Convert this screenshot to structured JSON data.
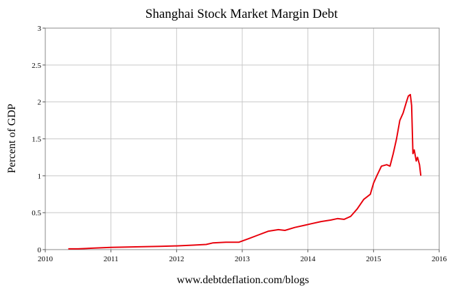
{
  "chart_data": {
    "type": "line",
    "title": "Shanghai Stock Market Margin Debt",
    "ylabel": "Percent of GDP",
    "xlabel": "",
    "footer": "www.debtdeflation.com/blogs",
    "xlim": [
      2010,
      2016
    ],
    "ylim": [
      0,
      3
    ],
    "xticks": [
      2010,
      2011,
      2012,
      2013,
      2014,
      2015,
      2016
    ],
    "xtick_labels": [
      "2010",
      "2011",
      "2012",
      "2013",
      "2014",
      "2015",
      "2016"
    ],
    "yticks": [
      0,
      0.5,
      1,
      1.5,
      2,
      2.5,
      3
    ],
    "ytick_labels": [
      "0",
      "0.5",
      "1",
      "1.5",
      "2",
      "2.5",
      "3"
    ],
    "grid": true,
    "legend": "none",
    "series": [
      {
        "color": "#e8000b",
        "x": [
          2010.35,
          2010.5,
          2010.75,
          2011.0,
          2011.25,
          2011.5,
          2011.75,
          2012.0,
          2012.25,
          2012.45,
          2012.55,
          2012.75,
          2012.95,
          2013.1,
          2013.25,
          2013.4,
          2013.55,
          2013.65,
          2013.8,
          2013.95,
          2014.05,
          2014.2,
          2014.35,
          2014.45,
          2014.55,
          2014.65,
          2014.75,
          2014.85,
          2014.95,
          2015.0,
          2015.05,
          2015.12,
          2015.2,
          2015.25,
          2015.3,
          2015.35,
          2015.4,
          2015.45,
          2015.5,
          2015.53,
          2015.56,
          2015.58,
          2015.6,
          2015.62,
          2015.65,
          2015.67,
          2015.7,
          2015.72
        ],
        "y": [
          0.01,
          0.01,
          0.02,
          0.03,
          0.035,
          0.04,
          0.045,
          0.05,
          0.06,
          0.07,
          0.09,
          0.1,
          0.1,
          0.15,
          0.2,
          0.25,
          0.27,
          0.26,
          0.3,
          0.33,
          0.35,
          0.38,
          0.4,
          0.42,
          0.41,
          0.45,
          0.55,
          0.68,
          0.75,
          0.9,
          1.0,
          1.13,
          1.15,
          1.13,
          1.3,
          1.5,
          1.75,
          1.85,
          2.0,
          2.08,
          2.1,
          1.95,
          1.3,
          1.35,
          1.2,
          1.25,
          1.15,
          1.0
        ]
      }
    ]
  }
}
